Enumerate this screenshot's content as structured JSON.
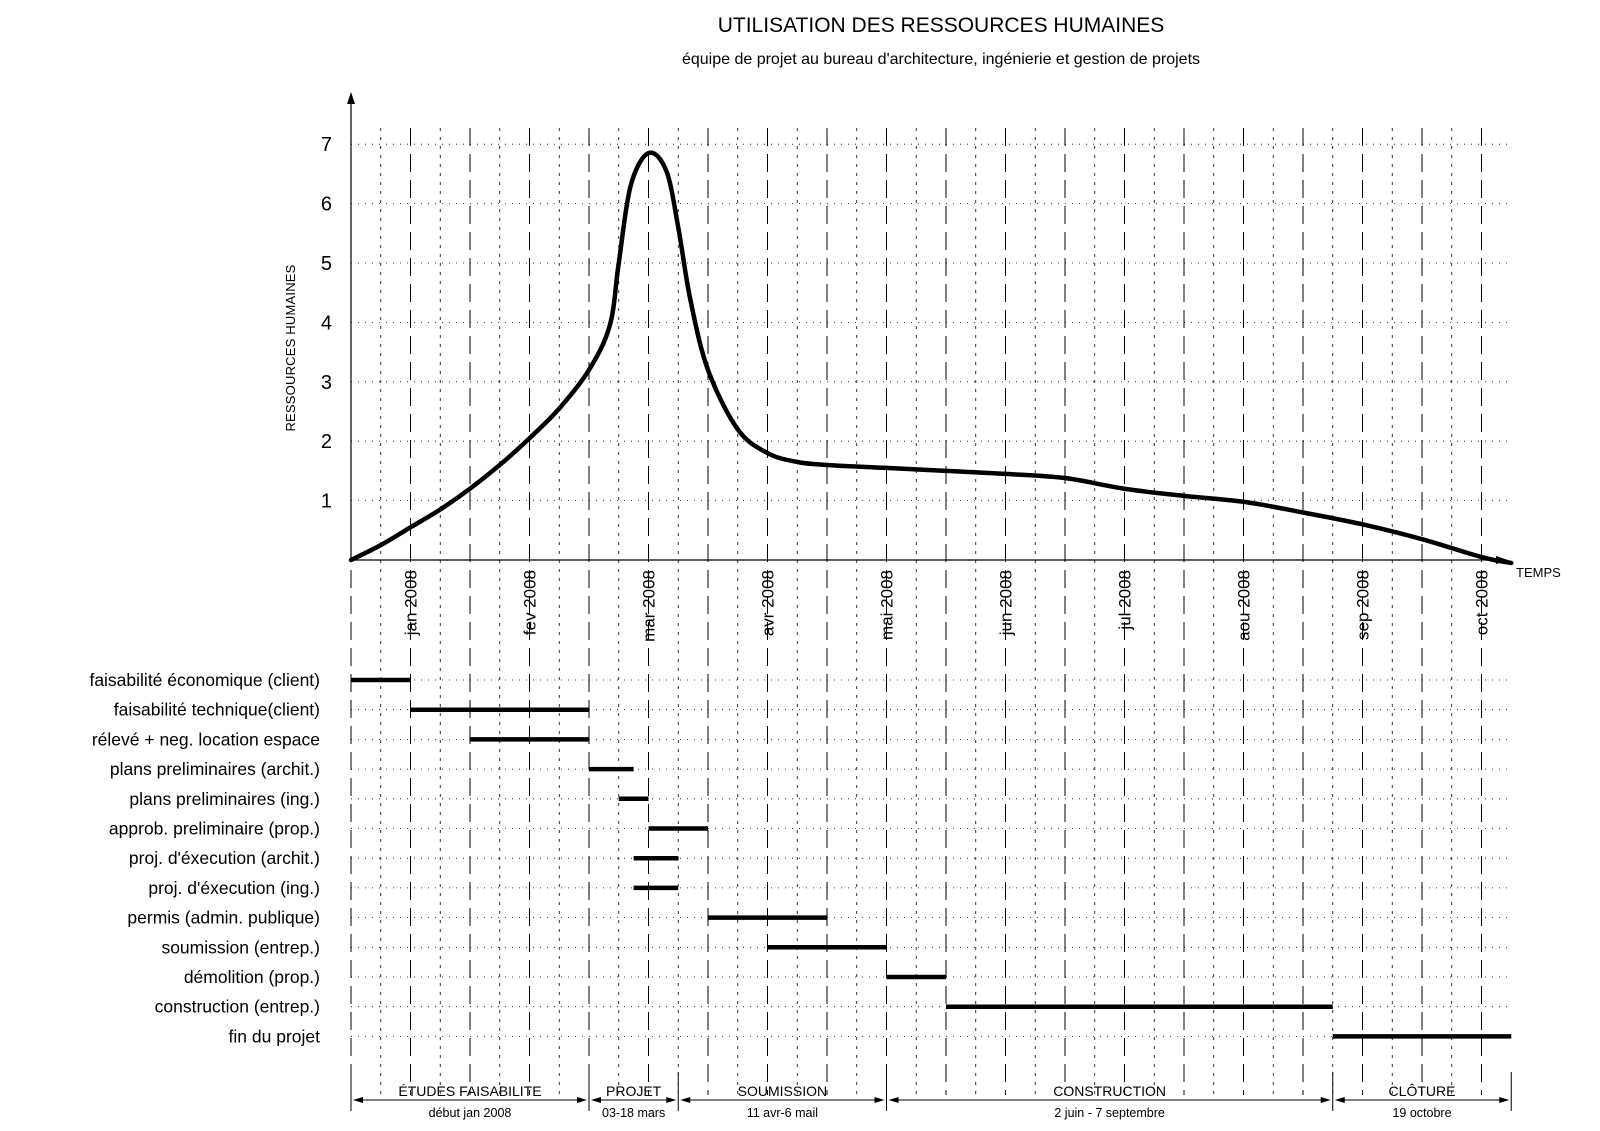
{
  "chart_data": {
    "type": "line",
    "title": "UTILISATION DES RESSOURCES HUMAINES",
    "subtitle": "équipe de projet au bureau d'architecture, ingénierie et gestion de projets",
    "ylabel": "RESSOURCES HUMAINES",
    "xlabel": "TEMPS",
    "ylim": [
      0,
      7.6
    ],
    "yticks": [
      "1",
      "2",
      "3",
      "4",
      "5",
      "6",
      "7"
    ],
    "grid": true,
    "x_unit": "half-month periods from start of jan 2008",
    "months": [
      "jan 2008",
      "fev 2008",
      "mar 2008",
      "avr 2008",
      "mai 2008",
      "jun 2008",
      "jul 2008",
      "aou 2008",
      "sep 2008",
      "oct 2008"
    ],
    "series": [
      {
        "points": [
          [
            0,
            0
          ],
          [
            0.5,
            0.25
          ],
          [
            1,
            0.55
          ],
          [
            1.5,
            0.85
          ],
          [
            2,
            1.2
          ],
          [
            2.5,
            1.6
          ],
          [
            3,
            2.05
          ],
          [
            3.5,
            2.55
          ],
          [
            4,
            3.2
          ],
          [
            4.35,
            3.95
          ],
          [
            4.5,
            5.0
          ],
          [
            4.7,
            6.3
          ],
          [
            5,
            6.85
          ],
          [
            5.3,
            6.55
          ],
          [
            5.5,
            5.6
          ],
          [
            5.7,
            4.4
          ],
          [
            6,
            3.2
          ],
          [
            6.5,
            2.2
          ],
          [
            7,
            1.8
          ],
          [
            7.5,
            1.65
          ],
          [
            8,
            1.6
          ],
          [
            9,
            1.55
          ],
          [
            10,
            1.5
          ],
          [
            11,
            1.45
          ],
          [
            12,
            1.38
          ],
          [
            13,
            1.2
          ],
          [
            14,
            1.08
          ],
          [
            15,
            0.98
          ],
          [
            16,
            0.8
          ],
          [
            17,
            0.6
          ],
          [
            18,
            0.35
          ],
          [
            19,
            0.05
          ],
          [
            19.5,
            -0.05
          ]
        ]
      }
    ],
    "tasks": [
      {
        "label": "faisabilité économique (client)",
        "start": 0,
        "end": 1
      },
      {
        "label": "faisabilité technique(client)",
        "start": 1,
        "end": 4
      },
      {
        "label": "rélevé + neg. location espace",
        "start": 2,
        "end": 4
      },
      {
        "label": "plans preliminaires (archit.)",
        "start": 4,
        "end": 4.75
      },
      {
        "label": "plans preliminaires  (ing.)",
        "start": 4.5,
        "end": 5
      },
      {
        "label": "approb. preliminaire (prop.)",
        "start": 5,
        "end": 6
      },
      {
        "label": "proj. d'éxecution (archit.)",
        "start": 4.75,
        "end": 5.5
      },
      {
        "label": "proj. d'éxecution (ing.)",
        "start": 4.75,
        "end": 5.5
      },
      {
        "label": "permis (admin. publique)",
        "start": 6,
        "end": 8
      },
      {
        "label": "soumission (entrep.)",
        "start": 7,
        "end": 9
      },
      {
        "label": "démolition (prop.)",
        "start": 9,
        "end": 10
      },
      {
        "label": "construction (entrep.)",
        "start": 10,
        "end": 16.5
      },
      {
        "label": "fin du projet",
        "start": 16.5,
        "end": 19.5
      }
    ],
    "phases": [
      {
        "name": "ÉTUDES FAISABILITE",
        "dates": "début jan 2008",
        "start": 0,
        "end": 4
      },
      {
        "name": "PROJET",
        "dates": "03-18 mars",
        "start": 4,
        "end": 5.5
      },
      {
        "name": "SOUMISSION",
        "dates": "11 avr-6 mail",
        "start": 5.5,
        "end": 9
      },
      {
        "name": "CONSTRUCTION",
        "dates": "2 juin - 7 septembre",
        "start": 9,
        "end": 16.5
      },
      {
        "name": "CLÔTURE",
        "dates": "19 octobre",
        "start": 16.5,
        "end": 19.5
      }
    ]
  }
}
